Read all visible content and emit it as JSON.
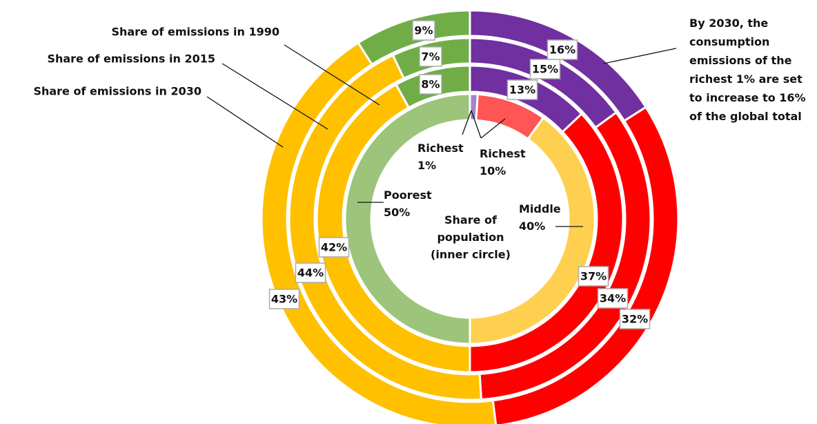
{
  "chart_data": {
    "type": "donut",
    "categories": [
      "Richest 1%",
      "Richest 10%",
      "Middle 40%",
      "Poorest 50%"
    ],
    "series": [
      {
        "name": "Share of population (inner circle)",
        "colors": [
          "#9e86c8",
          "#ff5555",
          "#ffd04f",
          "#9cc47a"
        ],
        "values": [
          1,
          9,
          40,
          50
        ]
      },
      {
        "name": "Share of emissions in 1990",
        "colors": [
          "#7030a0",
          "#ff0000",
          "#ffc000",
          "#70ad47"
        ],
        "values": [
          13,
          37,
          42,
          8
        ],
        "value_labels": [
          "13%",
          "37%",
          "42%",
          "8%"
        ]
      },
      {
        "name": "Share of emissions in 2015",
        "colors": [
          "#7030a0",
          "#ff0000",
          "#ffc000",
          "#70ad47"
        ],
        "values": [
          15,
          34,
          44,
          7
        ],
        "value_labels": [
          "15%",
          "34%",
          "44%",
          "7%"
        ]
      },
      {
        "name": "Share of emissions in 2030",
        "colors": [
          "#7030a0",
          "#ff0000",
          "#ffc000",
          "#70ad47"
        ],
        "values": [
          16,
          32,
          43,
          9
        ],
        "value_labels": [
          "16%",
          "32%",
          "43%",
          "9%"
        ]
      }
    ],
    "annotation": "By 2030, the consumption emissions of the richest 1% are set to increase to 16% of the global total"
  }
}
